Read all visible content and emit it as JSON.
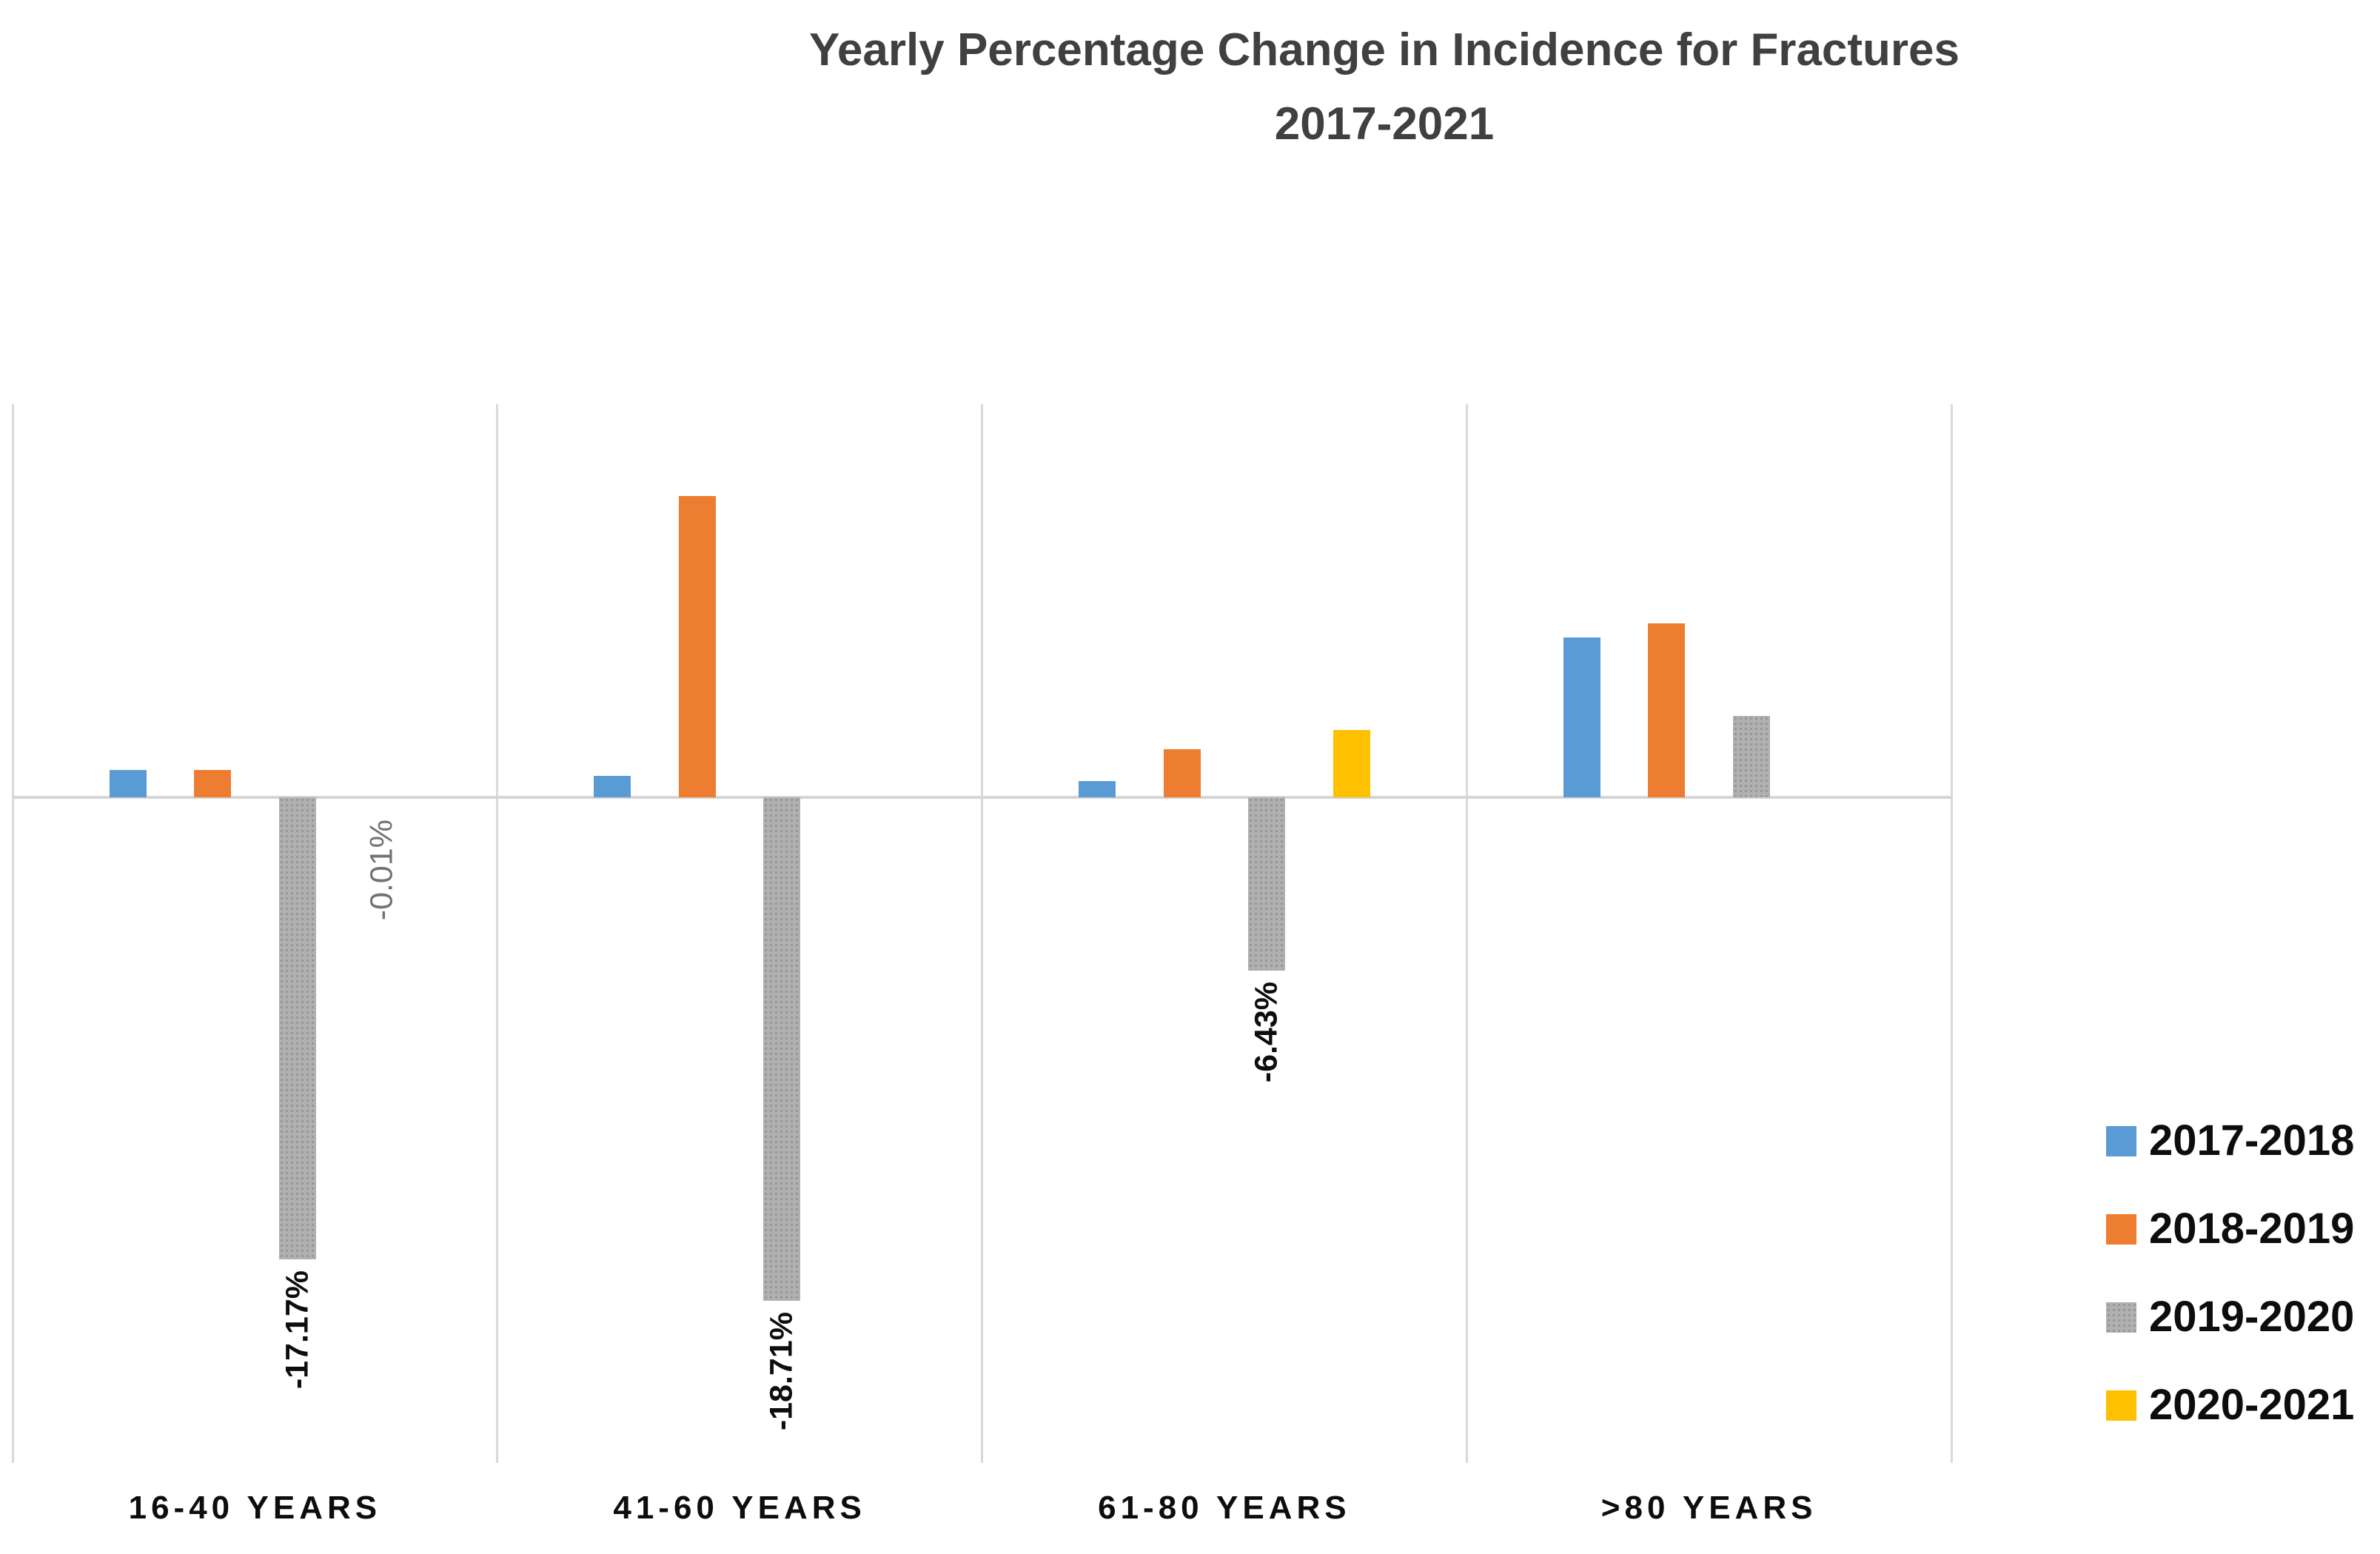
{
  "title_lines": [
    "Yearly Percentage Change in Incidence for Fractures",
    "2017-2021"
  ],
  "chart_data": {
    "type": "bar",
    "title": "Yearly Percentage Change in Incidence for Fractures 2017-2021",
    "xlabel": "",
    "ylabel": "",
    "categories": [
      "16-40 YEARS",
      "41-60 YEARS",
      "61-80 YEARS",
      ">80 YEARS"
    ],
    "series": [
      {
        "name": "2017-2018",
        "color": "#5B9BD5",
        "pattern": false,
        "values": [
          1.03,
          0.8,
          0.6,
          5.95
        ],
        "labels": [
          "+1.03%",
          "+0.80%",
          "+0.60%",
          "+5.95%"
        ]
      },
      {
        "name": "2018-2019",
        "color": "#ED7D31",
        "pattern": false,
        "values": [
          1.02,
          11.2,
          1.79,
          6.45
        ],
        "labels": [
          "+1.02%",
          "+11.20%",
          "+1.79%",
          "+6.45%"
        ]
      },
      {
        "name": "2019-2020",
        "color": "#A5A5A5",
        "pattern": true,
        "label_emphasis": true,
        "values": [
          -17.17,
          -18.71,
          -6.43,
          3.03
        ],
        "labels": [
          "-17.17%",
          "-18.71%",
          "-6.43%",
          "+3.03%"
        ]
      },
      {
        "name": "2020-2021",
        "color": "#FFC000",
        "pattern": false,
        "values": [
          -0.01,
          0,
          2.5,
          0
        ],
        "labels": [
          "-0.01%",
          "0%",
          "+2.50%",
          "0%"
        ]
      }
    ],
    "ylim": [
      -24.7,
      14.6
    ],
    "grid": "vertical-category-separators-only",
    "axis_tick_labels_visible": false,
    "legend_position": "right",
    "colors": {
      "gridline": "#D9D9D9",
      "zero_axis_line": "#D6D6D6",
      "title_text": "#404040",
      "value_label_default": "#767171",
      "value_label_emphasis": "#0D0D0D",
      "category_label": "#0D0D0D"
    }
  }
}
